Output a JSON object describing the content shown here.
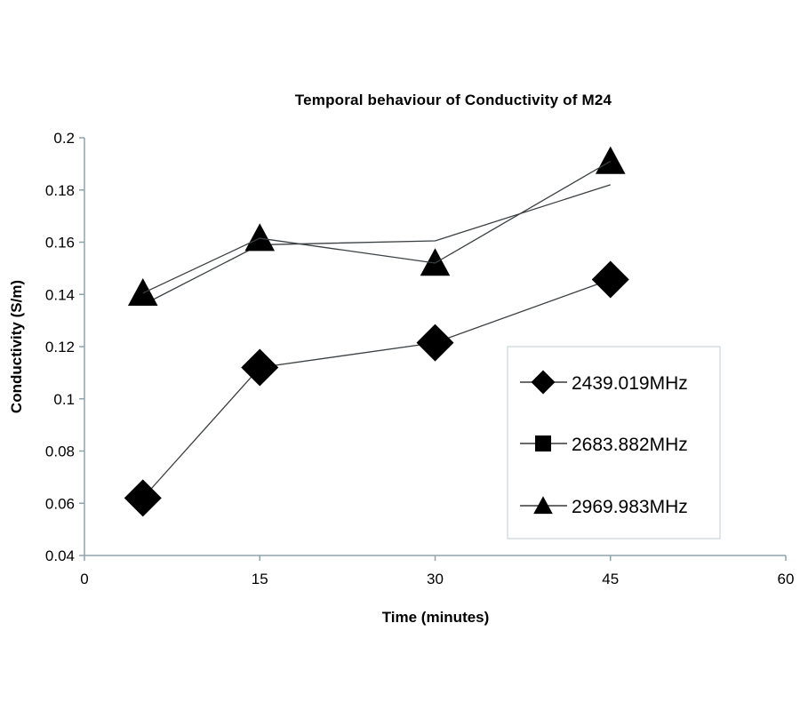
{
  "chart_data": {
    "type": "line",
    "title": "Temporal behaviour of Conductivity of M24",
    "xlabel": "Time (minutes)",
    "ylabel": "Conductivity (S/m)",
    "xlim": [
      0,
      60
    ],
    "ylim": [
      0.04,
      0.2
    ],
    "xticks": [
      0,
      15,
      30,
      45,
      60
    ],
    "xtick_labels": [
      "0",
      "15",
      "30",
      "45",
      "60"
    ],
    "yticks": [
      0.04,
      0.06,
      0.08,
      0.1,
      0.12,
      0.14,
      0.16,
      0.18,
      0.2
    ],
    "ytick_labels": [
      "0.04",
      "0.06",
      "0.08",
      "0.1",
      "0.12",
      "0.14",
      "0.16",
      "0.18",
      "0.2"
    ],
    "grid": false,
    "legend_position": "right",
    "x": [
      5,
      15,
      30,
      45
    ],
    "series": [
      {
        "name": "2439.019MHz",
        "marker": "diamond",
        "values": [
          0.062,
          0.112,
          0.1215,
          0.1457
        ]
      },
      {
        "name": "2683.882MHz",
        "marker": "square",
        "values": [
          0.136,
          0.159,
          0.1605,
          0.182
        ]
      },
      {
        "name": "2969.983MHz",
        "marker": "triangle",
        "values": [
          0.1405,
          0.1615,
          0.152,
          0.191
        ]
      }
    ],
    "colors": {
      "marker": "#000000",
      "line": "#3a3f42",
      "axis": "#8fa3ab",
      "legend_border": "#c9d6da"
    }
  }
}
